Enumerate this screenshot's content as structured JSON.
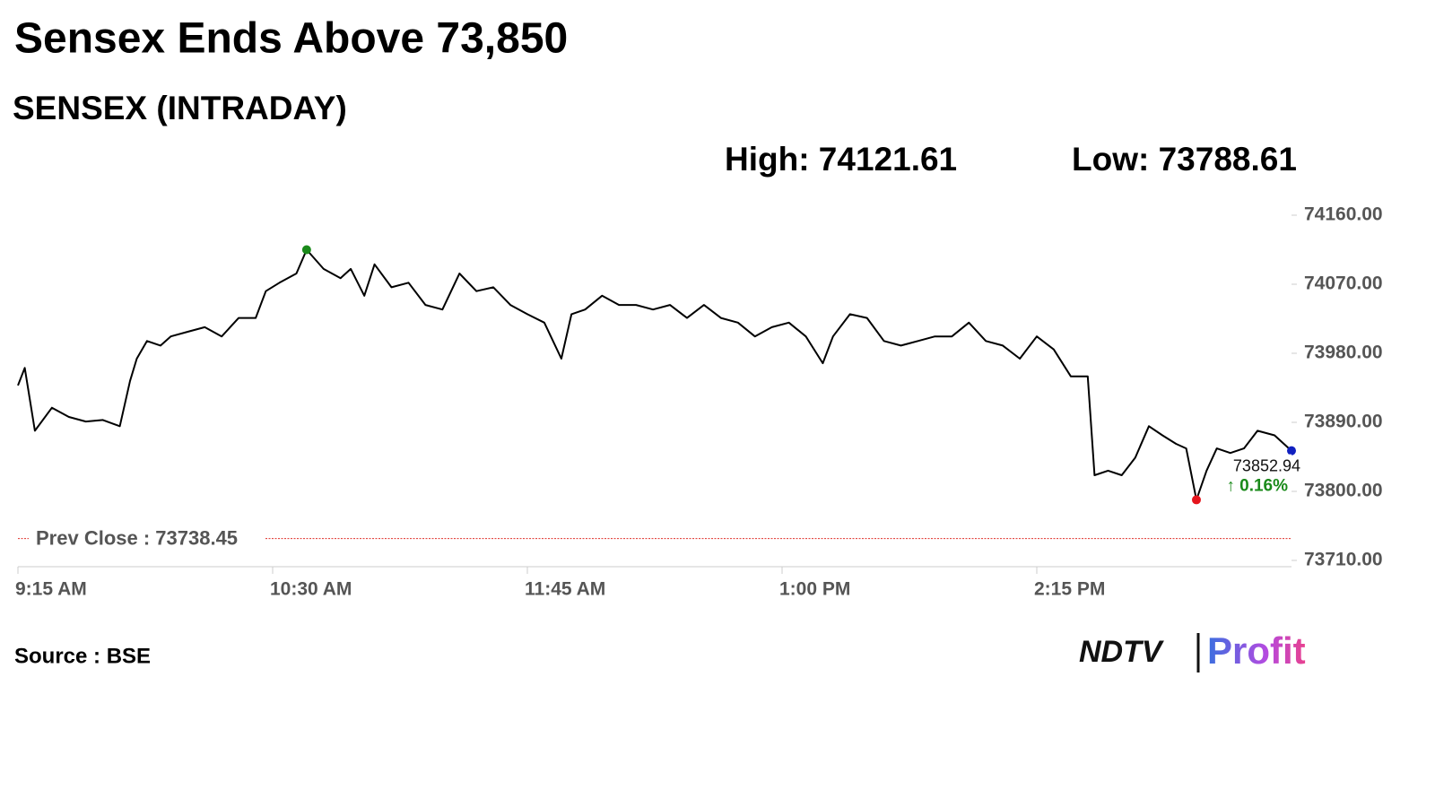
{
  "chart_data": {
    "type": "line",
    "title": "Sensex Ends Above 73,850",
    "subtitle": "SENSEX (INTRADAY)",
    "high_text": "High: 74121.61",
    "low_text": "Low: 73788.61",
    "prev_close": {
      "label": "Prev Close : 73738.45",
      "value": 73738.45,
      "color": "#e0302a"
    },
    "last_text": "73852.94",
    "change_text": "↑ 0.16%",
    "change_color": "#1a8a1a",
    "source": "Source : BSE",
    "logo": [
      "NDTV",
      "Profit"
    ],
    "high_color": "#1a8a1a",
    "low_color": "#e5141c",
    "last_color": "#1020c0",
    "series": [
      {
        "name": "SENSEX",
        "color": "#000000",
        "x": [
          555,
          557,
          560,
          565,
          570,
          575,
          580,
          585,
          588,
          590,
          593,
          597,
          600,
          605,
          610,
          615,
          620,
          625,
          628,
          632,
          637,
          640,
          645,
          650,
          653,
          657,
          660,
          665,
          670,
          675,
          680,
          685,
          690,
          695,
          700,
          705,
          710,
          715,
          718,
          722,
          727,
          732,
          737,
          742,
          747,
          752,
          757,
          762,
          767,
          772,
          777,
          782,
          787,
          792,
          795,
          800,
          805,
          810,
          815,
          820,
          825,
          830,
          835,
          840,
          845,
          850,
          855,
          860,
          865,
          870,
          872,
          876,
          880,
          884,
          888,
          892,
          896,
          899,
          902,
          905,
          908,
          912,
          916,
          920,
          925,
          930
        ],
        "values": [
          73938,
          73961,
          73879,
          73909,
          73897,
          73891,
          73893,
          73885,
          73944,
          73973,
          73996,
          73990,
          74002,
          74008,
          74014,
          74002,
          74026,
          74026,
          74061,
          74072,
          74084,
          74115,
          74090,
          74078,
          74090,
          74055,
          74096,
          74066,
          74072,
          74043,
          74037,
          74084,
          74061,
          74066,
          74043,
          74031,
          74020,
          73973,
          74031,
          74037,
          74055,
          74043,
          74043,
          74037,
          74043,
          74026,
          74043,
          74026,
          74020,
          74002,
          74014,
          74020,
          74002,
          73967,
          74002,
          74031,
          74026,
          73996,
          73990,
          73996,
          74002,
          74002,
          74020,
          73996,
          73990,
          73973,
          74002,
          73985,
          73950,
          73950,
          73821,
          73827,
          73821,
          73844,
          73885,
          73873,
          73862,
          73856,
          73789,
          73827,
          73856,
          73850,
          73856,
          73879,
          73873,
          73853
        ]
      }
    ],
    "xlim": [
      555,
      930
    ],
    "xticks": [
      {
        "value": 555,
        "label": "9:15 AM"
      },
      {
        "value": 630,
        "label": "10:30 AM"
      },
      {
        "value": 705,
        "label": "11:45 AM"
      },
      {
        "value": 780,
        "label": "1:00 PM"
      },
      {
        "value": 855,
        "label": "2:15 PM"
      }
    ],
    "ylim": [
      73710,
      74160
    ],
    "yticks": [
      {
        "value": 74160,
        "label": "74160.00"
      },
      {
        "value": 74070,
        "label": "74070.00"
      },
      {
        "value": 73980,
        "label": "73980.00"
      },
      {
        "value": 73890,
        "label": "73890.00"
      },
      {
        "value": 73800,
        "label": "73800.00"
      },
      {
        "value": 73710,
        "label": "73710.00"
      }
    ],
    "grid": false
  }
}
